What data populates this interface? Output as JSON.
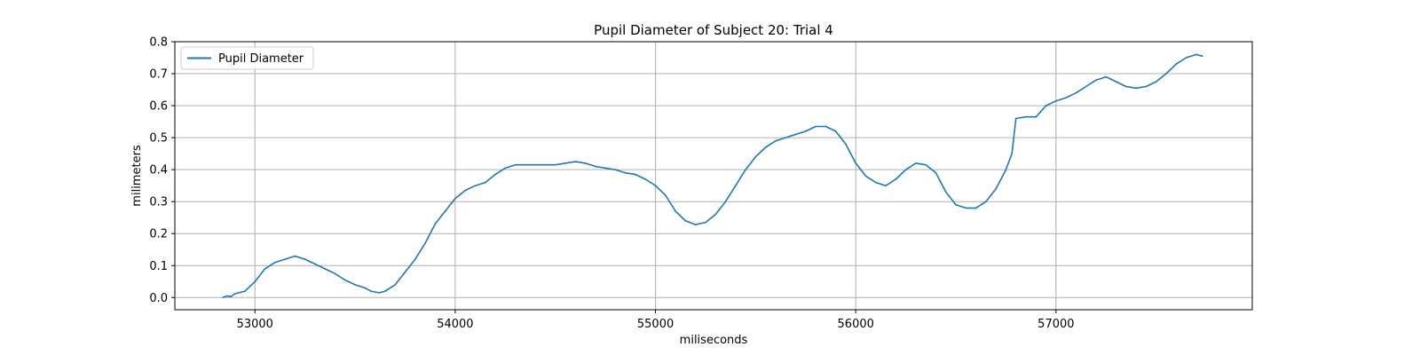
{
  "chart_data": {
    "type": "line",
    "title": "Pupil Diameter of Subject 20: Trial 4",
    "xlabel": "miliseconds",
    "ylabel": "milimeters",
    "xlim": [
      52600,
      57980
    ],
    "ylim": [
      -0.038,
      0.8
    ],
    "xticks": [
      53000,
      54000,
      55000,
      56000,
      57000
    ],
    "yticks": [
      0.0,
      0.1,
      0.2,
      0.3,
      0.4,
      0.5,
      0.6,
      0.7,
      0.8
    ],
    "xtick_labels": [
      "53000",
      "54000",
      "55000",
      "56000",
      "57000"
    ],
    "ytick_labels": [
      "0.0",
      "0.1",
      "0.2",
      "0.3",
      "0.4",
      "0.5",
      "0.6",
      "0.7",
      "0.8"
    ],
    "grid": true,
    "legend": {
      "position": "top-left"
    },
    "series": [
      {
        "name": "Pupil Diameter",
        "color": "#1f77b4",
        "x": [
          52840,
          52860,
          52880,
          52900,
          52950,
          53000,
          53050,
          53100,
          53150,
          53200,
          53250,
          53300,
          53350,
          53400,
          53450,
          53500,
          53550,
          53580,
          53620,
          53650,
          53700,
          53750,
          53800,
          53850,
          53900,
          53950,
          54000,
          54050,
          54100,
          54150,
          54200,
          54250,
          54300,
          54350,
          54400,
          54450,
          54500,
          54550,
          54600,
          54650,
          54700,
          54750,
          54800,
          54850,
          54900,
          54950,
          55000,
          55050,
          55100,
          55150,
          55200,
          55250,
          55300,
          55350,
          55400,
          55450,
          55500,
          55550,
          55600,
          55650,
          55700,
          55750,
          55800,
          55850,
          55900,
          55950,
          56000,
          56050,
          56100,
          56150,
          56200,
          56250,
          56300,
          56350,
          56400,
          56450,
          56500,
          56550,
          56600,
          56650,
          56700,
          56750,
          56780,
          56800,
          56850,
          56900,
          56950,
          57000,
          57050,
          57100,
          57150,
          57200,
          57250,
          57300,
          57350,
          57400,
          57450,
          57500,
          57550,
          57600,
          57650,
          57700,
          57730
        ],
        "y": [
          0.0,
          0.005,
          0.003,
          0.012,
          0.02,
          0.05,
          0.09,
          0.11,
          0.12,
          0.13,
          0.12,
          0.105,
          0.09,
          0.075,
          0.055,
          0.04,
          0.03,
          0.02,
          0.015,
          0.02,
          0.04,
          0.08,
          0.12,
          0.17,
          0.23,
          0.27,
          0.31,
          0.335,
          0.35,
          0.36,
          0.385,
          0.405,
          0.415,
          0.415,
          0.415,
          0.415,
          0.415,
          0.42,
          0.425,
          0.42,
          0.41,
          0.405,
          0.4,
          0.39,
          0.385,
          0.37,
          0.35,
          0.32,
          0.27,
          0.24,
          0.228,
          0.235,
          0.26,
          0.3,
          0.35,
          0.4,
          0.44,
          0.47,
          0.49,
          0.5,
          0.51,
          0.52,
          0.535,
          0.535,
          0.52,
          0.48,
          0.42,
          0.38,
          0.36,
          0.35,
          0.37,
          0.4,
          0.42,
          0.415,
          0.39,
          0.33,
          0.29,
          0.28,
          0.28,
          0.3,
          0.34,
          0.4,
          0.45,
          0.56,
          0.565,
          0.565,
          0.6,
          0.615,
          0.625,
          0.64,
          0.66,
          0.68,
          0.69,
          0.675,
          0.66,
          0.655,
          0.66,
          0.675,
          0.7,
          0.73,
          0.75,
          0.76,
          0.755
        ]
      }
    ]
  }
}
